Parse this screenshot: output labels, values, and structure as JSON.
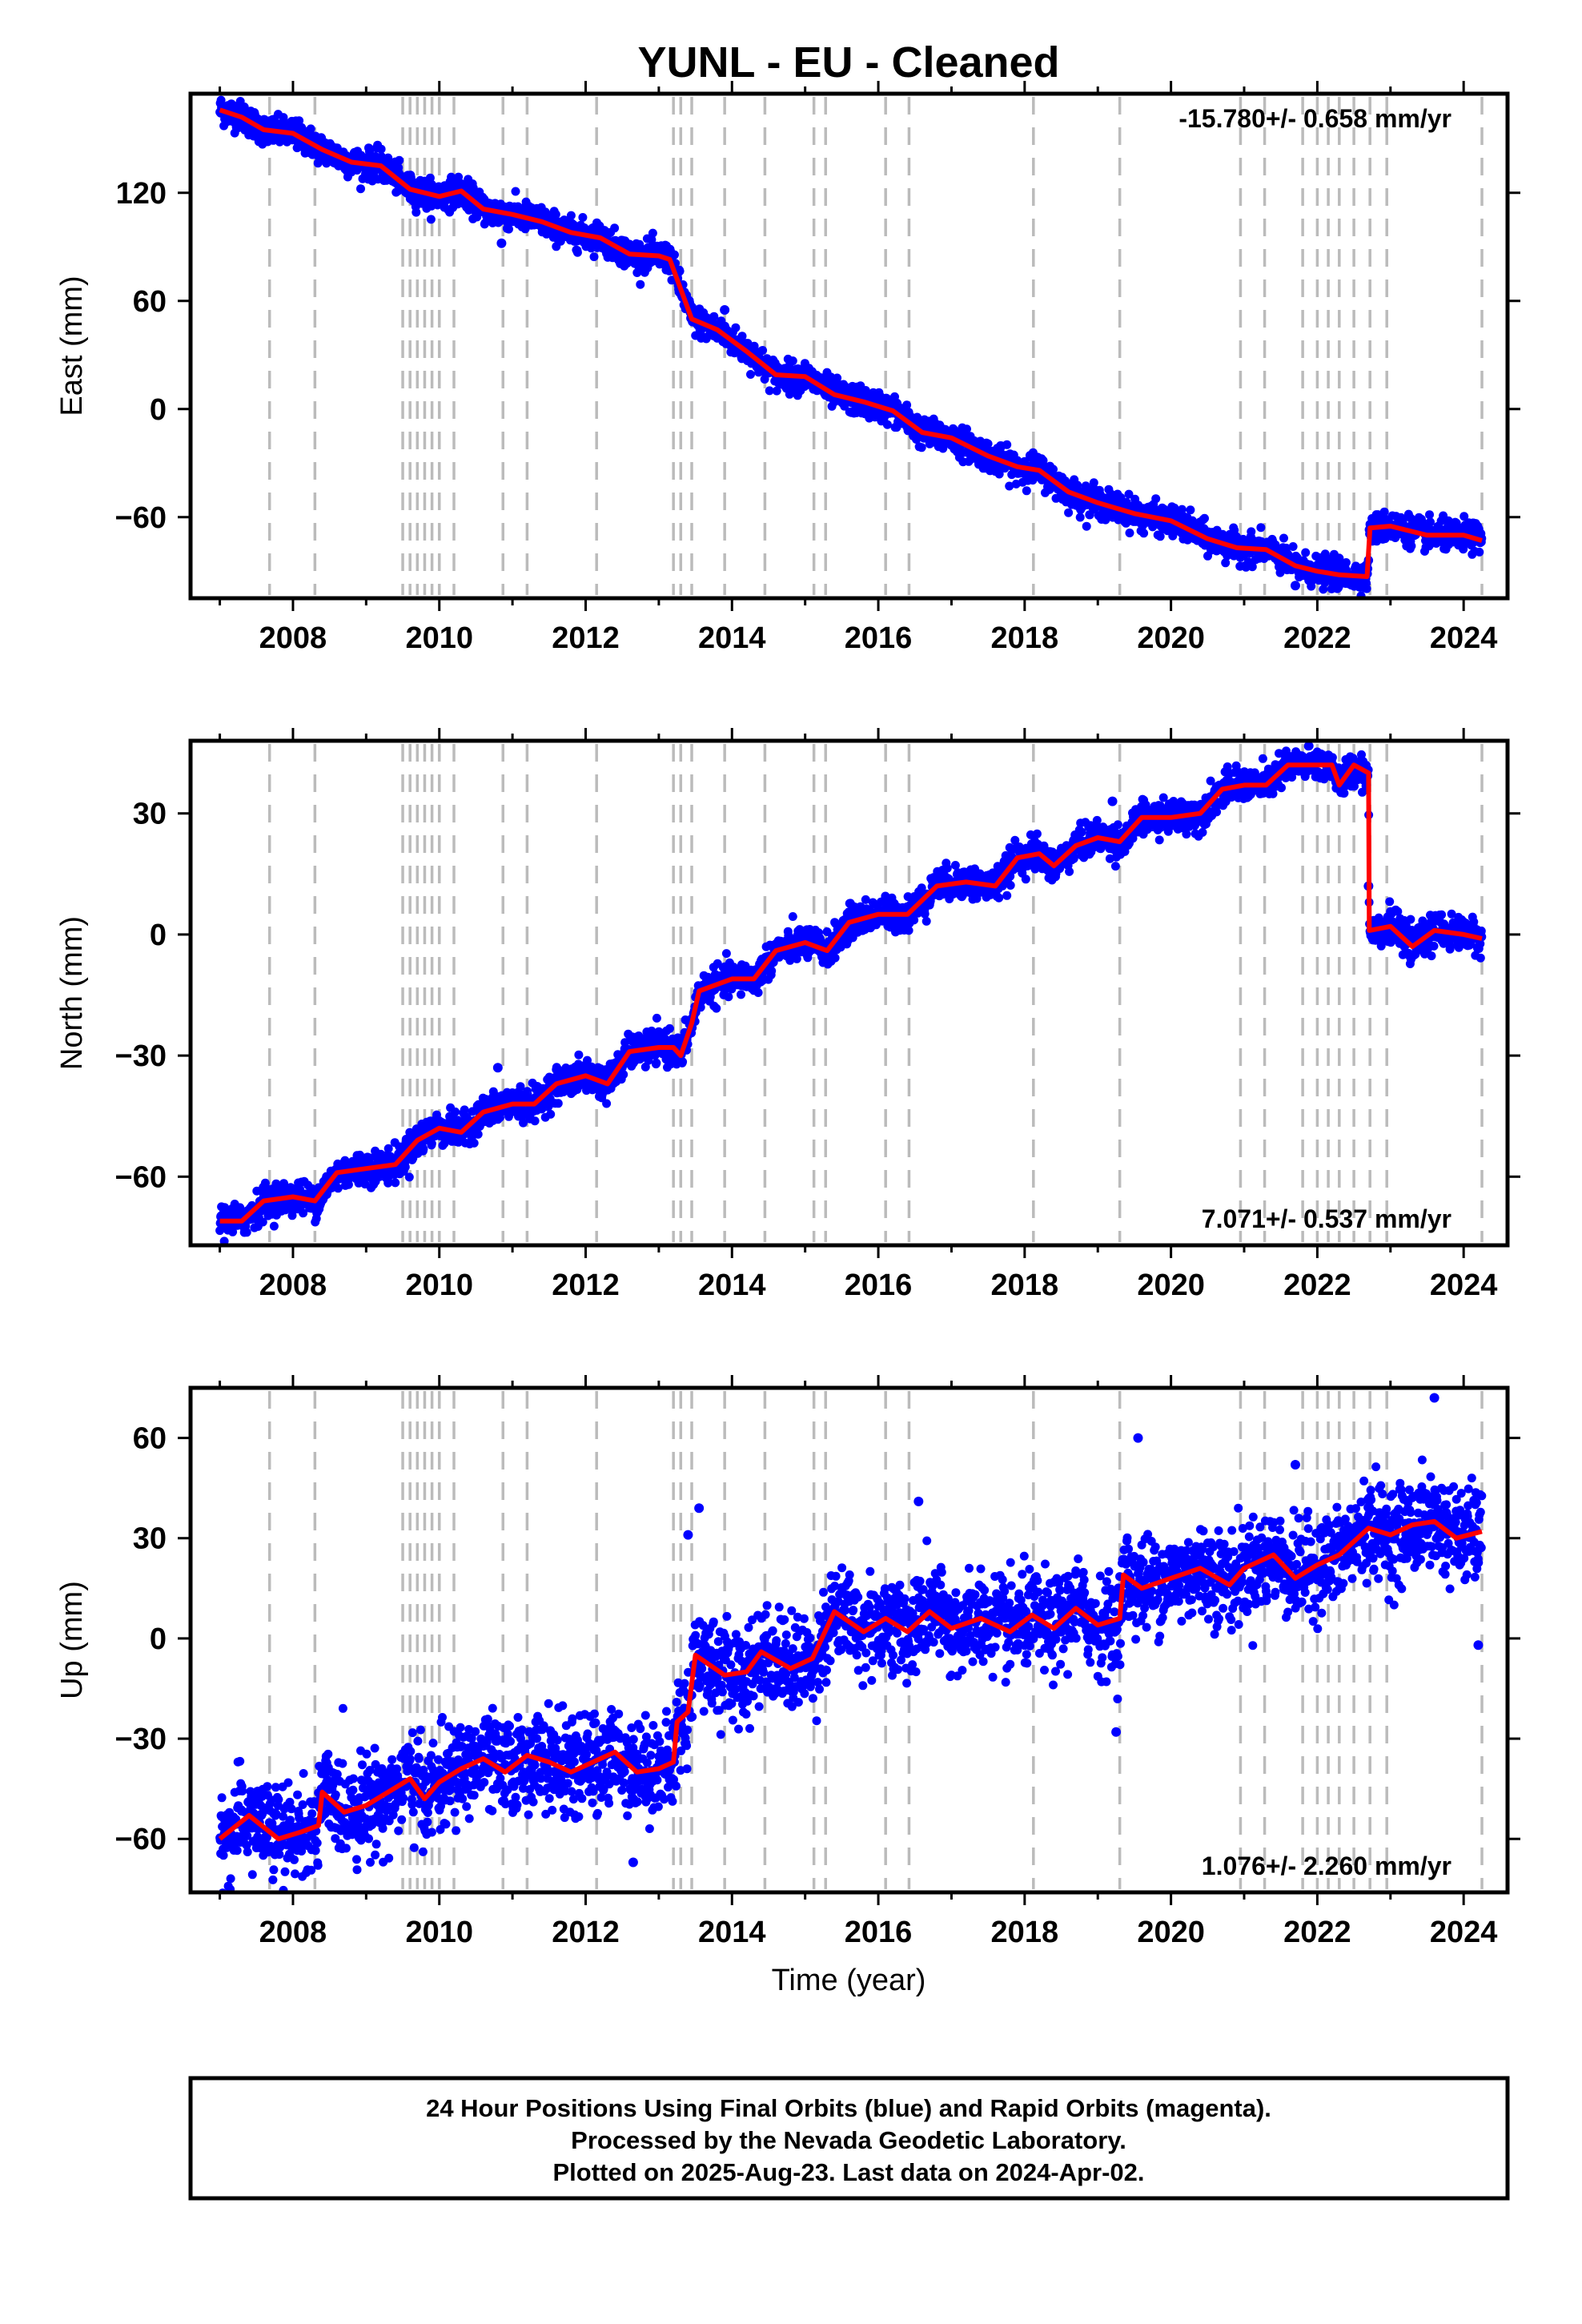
{
  "title": "YUNL  - EU - Cleaned",
  "xlabel": "Time (year)",
  "footer": {
    "line1": "24 Hour Positions Using Final Orbits (blue) and Rapid Orbits (magenta).",
    "line2": "Processed by the Nevada Geodetic Laboratory.",
    "line3": "Plotted on 2025-Aug-23. Last data on 2024-Apr-02."
  },
  "colors": {
    "data_points": "#0000ff",
    "model_line": "#ff0000",
    "step_lines": "#bbbbbb",
    "frame": "#000000"
  },
  "chart_data": [
    {
      "type": "scatter",
      "panel": "east",
      "ylabel": "East (mm)",
      "rate_text": "-15.780+/- 0.658 mm/yr",
      "rate_position": "top-right",
      "xlim": [
        2006.6,
        2024.6
      ],
      "ylim": [
        -105,
        175
      ],
      "xticks": [
        2008,
        2010,
        2012,
        2014,
        2016,
        2018,
        2020,
        2022,
        2024
      ],
      "yticks": [
        -60,
        0,
        60,
        120
      ],
      "model": [
        [
          2007.0,
          166
        ],
        [
          2007.3,
          162
        ],
        [
          2007.6,
          155
        ],
        [
          2008.0,
          153
        ],
        [
          2008.4,
          144
        ],
        [
          2008.8,
          137
        ],
        [
          2009.2,
          135
        ],
        [
          2009.6,
          122
        ],
        [
          2010.0,
          118
        ],
        [
          2010.3,
          121
        ],
        [
          2010.6,
          111
        ],
        [
          2011.0,
          108
        ],
        [
          2011.4,
          104
        ],
        [
          2011.8,
          98
        ],
        [
          2012.2,
          95
        ],
        [
          2012.6,
          86
        ],
        [
          2013.0,
          85
        ],
        [
          2013.15,
          83
        ],
        [
          2013.35,
          61
        ],
        [
          2013.45,
          50
        ],
        [
          2013.8,
          44
        ],
        [
          2014.2,
          32
        ],
        [
          2014.6,
          19
        ],
        [
          2015.0,
          18
        ],
        [
          2015.4,
          8
        ],
        [
          2015.8,
          4
        ],
        [
          2016.2,
          -1
        ],
        [
          2016.6,
          -13
        ],
        [
          2017.0,
          -16
        ],
        [
          2017.5,
          -26
        ],
        [
          2017.9,
          -32
        ],
        [
          2018.2,
          -34
        ],
        [
          2018.6,
          -46
        ],
        [
          2019.0,
          -52
        ],
        [
          2019.5,
          -58
        ],
        [
          2020.0,
          -62
        ],
        [
          2020.5,
          -72
        ],
        [
          2020.9,
          -77
        ],
        [
          2021.3,
          -78
        ],
        [
          2021.7,
          -87
        ],
        [
          2022.0,
          -90
        ],
        [
          2022.3,
          -92
        ],
        [
          2022.68,
          -93
        ],
        [
          2022.72,
          -66
        ],
        [
          2023.0,
          -65
        ],
        [
          2023.5,
          -70
        ],
        [
          2024.0,
          -70
        ],
        [
          2024.25,
          -73
        ]
      ],
      "scatter_spread": 4,
      "outliers": [
        [
          2010.85,
          92
        ],
        [
          2013.9,
          55
        ],
        [
          2021.7,
          -98
        ]
      ]
    },
    {
      "type": "scatter",
      "panel": "north",
      "ylabel": "North (mm)",
      "rate_text": "7.071+/- 0.537 mm/yr",
      "rate_position": "bottom-right",
      "xlim": [
        2006.6,
        2024.6
      ],
      "ylim": [
        -77,
        48
      ],
      "xticks": [
        2008,
        2010,
        2012,
        2014,
        2016,
        2018,
        2020,
        2022,
        2024
      ],
      "yticks": [
        -60,
        -30,
        0,
        30
      ],
      "model": [
        [
          2007.0,
          -71
        ],
        [
          2007.3,
          -71
        ],
        [
          2007.6,
          -66
        ],
        [
          2008.0,
          -65
        ],
        [
          2008.3,
          -66
        ],
        [
          2008.6,
          -59
        ],
        [
          2009.0,
          -58
        ],
        [
          2009.4,
          -57
        ],
        [
          2009.7,
          -51
        ],
        [
          2010.0,
          -48
        ],
        [
          2010.3,
          -49
        ],
        [
          2010.6,
          -44
        ],
        [
          2011.0,
          -42
        ],
        [
          2011.3,
          -42
        ],
        [
          2011.6,
          -37
        ],
        [
          2012.0,
          -35
        ],
        [
          2012.3,
          -37
        ],
        [
          2012.6,
          -29
        ],
        [
          2013.0,
          -28
        ],
        [
          2013.2,
          -28
        ],
        [
          2013.3,
          -30
        ],
        [
          2013.45,
          -22
        ],
        [
          2013.55,
          -14
        ],
        [
          2014.0,
          -11
        ],
        [
          2014.3,
          -11
        ],
        [
          2014.6,
          -4
        ],
        [
          2015.0,
          -2
        ],
        [
          2015.3,
          -4
        ],
        [
          2015.6,
          3
        ],
        [
          2016.0,
          5
        ],
        [
          2016.4,
          5
        ],
        [
          2016.8,
          12
        ],
        [
          2017.2,
          13
        ],
        [
          2017.6,
          12
        ],
        [
          2017.9,
          19
        ],
        [
          2018.2,
          20
        ],
        [
          2018.4,
          17
        ],
        [
          2018.7,
          22
        ],
        [
          2019.0,
          24
        ],
        [
          2019.3,
          23
        ],
        [
          2019.6,
          29
        ],
        [
          2020.0,
          29
        ],
        [
          2020.4,
          30
        ],
        [
          2020.7,
          36
        ],
        [
          2021.0,
          37
        ],
        [
          2021.3,
          37
        ],
        [
          2021.6,
          42
        ],
        [
          2022.0,
          42
        ],
        [
          2022.2,
          42
        ],
        [
          2022.3,
          37
        ],
        [
          2022.5,
          42
        ],
        [
          2022.7,
          40
        ],
        [
          2022.71,
          1
        ],
        [
          2023.0,
          2
        ],
        [
          2023.3,
          -3
        ],
        [
          2023.6,
          1
        ],
        [
          2024.0,
          0
        ],
        [
          2024.25,
          -1
        ]
      ],
      "scatter_spread": 2,
      "outliers": [
        [
          2010.8,
          -33
        ],
        [
          2019.2,
          33
        ],
        [
          2022.7,
          12
        ]
      ]
    },
    {
      "type": "scatter",
      "panel": "up",
      "ylabel": "Up (mm)",
      "rate_text": "1.076+/- 2.260 mm/yr",
      "rate_position": "bottom-right",
      "xlim": [
        2006.6,
        2024.6
      ],
      "ylim": [
        -76,
        75
      ],
      "xticks": [
        2008,
        2010,
        2012,
        2014,
        2016,
        2018,
        2020,
        2022,
        2024
      ],
      "yticks": [
        -60,
        -30,
        0,
        30,
        60
      ],
      "model": [
        [
          2007.0,
          -60
        ],
        [
          2007.4,
          -53
        ],
        [
          2007.8,
          -60
        ],
        [
          2008.1,
          -58
        ],
        [
          2008.35,
          -56
        ],
        [
          2008.4,
          -46
        ],
        [
          2008.7,
          -52
        ],
        [
          2009.0,
          -50
        ],
        [
          2009.3,
          -46
        ],
        [
          2009.6,
          -42
        ],
        [
          2009.8,
          -48
        ],
        [
          2010.0,
          -43
        ],
        [
          2010.3,
          -39
        ],
        [
          2010.6,
          -36
        ],
        [
          2010.9,
          -40
        ],
        [
          2011.2,
          -35
        ],
        [
          2011.5,
          -37
        ],
        [
          2011.8,
          -40
        ],
        [
          2012.0,
          -38
        ],
        [
          2012.4,
          -34
        ],
        [
          2012.7,
          -40
        ],
        [
          2013.0,
          -39
        ],
        [
          2013.2,
          -37
        ],
        [
          2013.25,
          -25
        ],
        [
          2013.4,
          -22
        ],
        [
          2013.5,
          -5
        ],
        [
          2013.9,
          -11
        ],
        [
          2014.2,
          -10
        ],
        [
          2014.4,
          -4
        ],
        [
          2014.8,
          -9
        ],
        [
          2015.1,
          -6
        ],
        [
          2015.4,
          8
        ],
        [
          2015.8,
          2
        ],
        [
          2016.1,
          6
        ],
        [
          2016.4,
          2
        ],
        [
          2016.7,
          8
        ],
        [
          2017.0,
          3
        ],
        [
          2017.4,
          6
        ],
        [
          2017.8,
          2
        ],
        [
          2018.1,
          7
        ],
        [
          2018.4,
          3
        ],
        [
          2018.7,
          9
        ],
        [
          2019.0,
          4
        ],
        [
          2019.3,
          6
        ],
        [
          2019.35,
          19
        ],
        [
          2019.6,
          15
        ],
        [
          2020.0,
          18
        ],
        [
          2020.4,
          21
        ],
        [
          2020.8,
          16
        ],
        [
          2021.0,
          21
        ],
        [
          2021.4,
          25
        ],
        [
          2021.7,
          18
        ],
        [
          2022.0,
          22
        ],
        [
          2022.3,
          25
        ],
        [
          2022.55,
          30
        ],
        [
          2022.7,
          33
        ],
        [
          2023.0,
          31
        ],
        [
          2023.3,
          34
        ],
        [
          2023.6,
          35
        ],
        [
          2023.9,
          30
        ],
        [
          2024.25,
          32
        ]
      ],
      "scatter_spread": 7,
      "outliers": [
        [
          2012.65,
          -67
        ],
        [
          2013.4,
          31
        ],
        [
          2013.55,
          39
        ],
        [
          2016.55,
          41
        ],
        [
          2019.55,
          60
        ],
        [
          2021.7,
          52
        ],
        [
          2023.6,
          72
        ],
        [
          2019.25,
          -28
        ],
        [
          2024.2,
          -2
        ]
      ]
    }
  ],
  "step_lines_years": [
    2007.68,
    2008.3,
    2009.5,
    2009.6,
    2009.7,
    2009.8,
    2009.9,
    2010.0,
    2010.2,
    2010.87,
    2011.2,
    2012.15,
    2013.2,
    2013.3,
    2013.45,
    2013.9,
    2014.45,
    2015.12,
    2015.28,
    2016.1,
    2016.42,
    2018.12,
    2019.3,
    2020.95,
    2021.28,
    2021.8,
    2022.0,
    2022.15,
    2022.3,
    2022.5,
    2022.72,
    2022.95,
    2024.25
  ]
}
